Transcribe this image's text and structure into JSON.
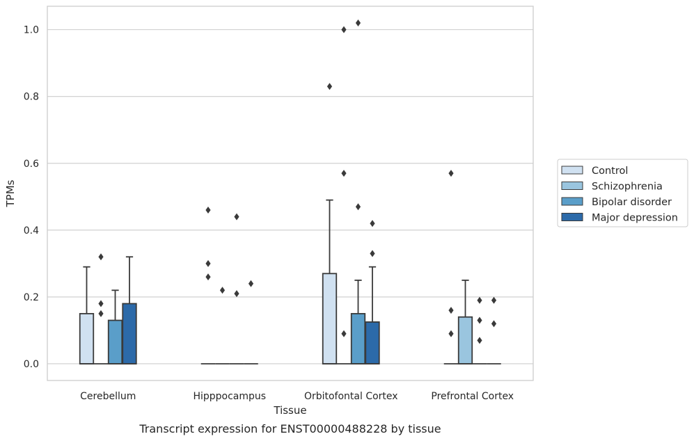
{
  "caption": "Transcript expression for ENST00000488228 by tissue",
  "chart_data": {
    "type": "box",
    "xlabel": "Tissue",
    "ylabel": "TPMs",
    "ylim": [
      -0.05,
      1.07
    ],
    "yticks": [
      0.0,
      0.2,
      0.4,
      0.6,
      0.8,
      1.0
    ],
    "ytick_labels": [
      "0.0",
      "0.2",
      "0.4",
      "0.6",
      "0.8",
      "1.0"
    ],
    "grid": "horizontal",
    "legend_position": "right",
    "categories": [
      "Cerebellum",
      "Hipppocampus",
      "Orbitofontal Cortex",
      "Prefrontal Cortex"
    ],
    "series": [
      {
        "name": "Control",
        "color": "#d0e1f1",
        "boxes": [
          {
            "q1": 0.0,
            "median": 0.0,
            "q3": 0.15,
            "whisker_low": 0.0,
            "whisker_high": 0.29,
            "outliers": []
          },
          {
            "q1": 0.0,
            "median": 0.0,
            "q3": 0.0,
            "whisker_low": 0.0,
            "whisker_high": 0.0,
            "outliers": [
              0.46,
              0.3,
              0.26
            ]
          },
          {
            "q1": 0.0,
            "median": 0.0,
            "q3": 0.27,
            "whisker_low": 0.0,
            "whisker_high": 0.49,
            "outliers": [
              0.83
            ]
          },
          {
            "q1": 0.0,
            "median": 0.0,
            "q3": 0.0,
            "whisker_low": 0.0,
            "whisker_high": 0.0,
            "outliers": [
              0.57,
              0.16,
              0.09
            ]
          }
        ]
      },
      {
        "name": "Schizophrenia",
        "color": "#9ac5df",
        "boxes": [
          {
            "q1": 0.0,
            "median": 0.0,
            "q3": 0.0,
            "whisker_low": 0.0,
            "whisker_high": 0.0,
            "outliers": [
              0.32,
              0.18,
              0.15
            ]
          },
          {
            "q1": 0.0,
            "median": 0.0,
            "q3": 0.0,
            "whisker_low": 0.0,
            "whisker_high": 0.0,
            "outliers": [
              0.22
            ]
          },
          {
            "q1": 0.0,
            "median": 0.0,
            "q3": 0.0,
            "whisker_low": 0.0,
            "whisker_high": 0.0,
            "outliers": [
              1.0,
              0.57,
              0.09
            ]
          },
          {
            "q1": 0.0,
            "median": 0.0,
            "q3": 0.14,
            "whisker_low": 0.0,
            "whisker_high": 0.25,
            "outliers": []
          }
        ]
      },
      {
        "name": "Bipolar disorder",
        "color": "#5a9ec9",
        "boxes": [
          {
            "q1": 0.0,
            "median": 0.0,
            "q3": 0.13,
            "whisker_low": 0.0,
            "whisker_high": 0.22,
            "outliers": []
          },
          {
            "q1": 0.0,
            "median": 0.0,
            "q3": 0.0,
            "whisker_low": 0.0,
            "whisker_high": 0.0,
            "outliers": [
              0.44,
              0.21
            ]
          },
          {
            "q1": 0.0,
            "median": 0.0,
            "q3": 0.15,
            "whisker_low": 0.0,
            "whisker_high": 0.25,
            "outliers": [
              1.02,
              0.47
            ]
          },
          {
            "q1": 0.0,
            "median": 0.0,
            "q3": 0.0,
            "whisker_low": 0.0,
            "whisker_high": 0.0,
            "outliers": [
              0.19,
              0.13,
              0.07
            ]
          }
        ]
      },
      {
        "name": "Major depression",
        "color": "#2c6aa9",
        "boxes": [
          {
            "q1": 0.0,
            "median": 0.0,
            "q3": 0.18,
            "whisker_low": 0.0,
            "whisker_high": 0.32,
            "outliers": []
          },
          {
            "q1": 0.0,
            "median": 0.0,
            "q3": 0.0,
            "whisker_low": 0.0,
            "whisker_high": 0.0,
            "outliers": [
              0.24
            ]
          },
          {
            "q1": 0.0,
            "median": 0.0,
            "q3": 0.125,
            "whisker_low": 0.0,
            "whisker_high": 0.29,
            "outliers": [
              0.42,
              0.33
            ]
          },
          {
            "q1": 0.0,
            "median": 0.0,
            "q3": 0.0,
            "whisker_low": 0.0,
            "whisker_high": 0.0,
            "outliers": [
              0.19,
              0.12
            ]
          }
        ]
      }
    ]
  }
}
